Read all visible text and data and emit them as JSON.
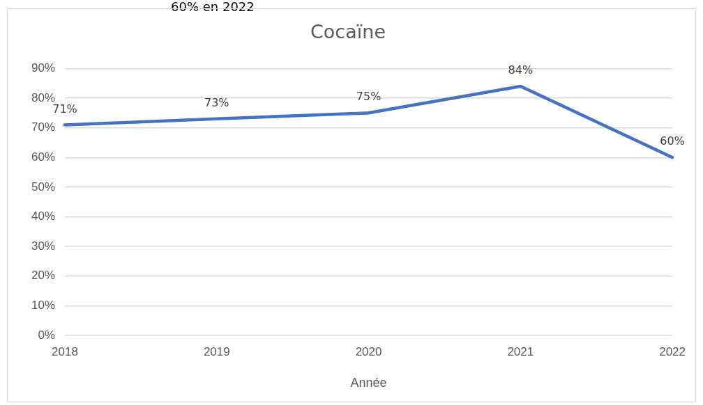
{
  "chart_data": {
    "type": "line",
    "title": "Cocaïne",
    "xlabel": "Année",
    "categories": [
      "2018",
      "2019",
      "2020",
      "2021",
      "2022"
    ],
    "series": [
      {
        "color": "#4472c4",
        "values": [
          71,
          73,
          75,
          84,
          60
        ],
        "value_labels": [
          "71%",
          "73%",
          "75%",
          "84%",
          "60%"
        ]
      }
    ],
    "ylim": [
      0,
      90
    ],
    "yticks": [
      {
        "value": 0,
        "label": "0%"
      },
      {
        "value": 10,
        "label": "10%"
      },
      {
        "value": 20,
        "label": "20%"
      },
      {
        "value": 30,
        "label": "30%"
      },
      {
        "value": 40,
        "label": "40%"
      },
      {
        "value": 50,
        "label": "50%"
      },
      {
        "value": 60,
        "label": "60%"
      },
      {
        "value": 70,
        "label": "70%"
      },
      {
        "value": 80,
        "label": "80%"
      },
      {
        "value": 90,
        "label": "90%"
      }
    ],
    "grid": "y",
    "marker": "none",
    "line_style": "solid",
    "annotations": [
      "60% en 2022"
    ]
  }
}
